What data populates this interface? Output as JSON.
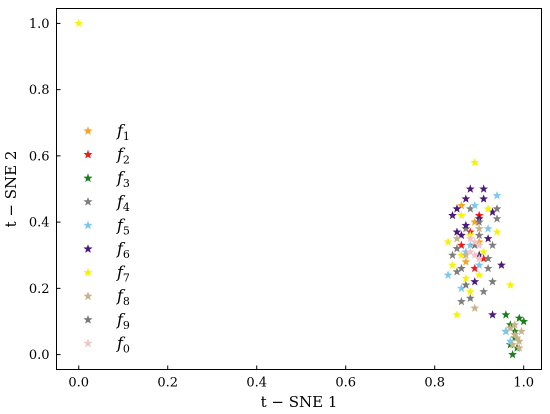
{
  "chart_data": {
    "type": "scatter",
    "title": "",
    "xlabel": "t − SNE 1",
    "ylabel": "t − SNE 2",
    "xlim": [
      -0.05,
      1.04
    ],
    "ylim": [
      -0.045,
      1.045
    ],
    "xticks": [
      {
        "v": 0.0,
        "label": "0.0"
      },
      {
        "v": 0.2,
        "label": "0.2"
      },
      {
        "v": 0.4,
        "label": "0.4"
      },
      {
        "v": 0.6,
        "label": "0.6"
      },
      {
        "v": 0.8,
        "label": "0.8"
      },
      {
        "v": 1.0,
        "label": "1.0"
      }
    ],
    "yticks": [
      {
        "v": 0.0,
        "label": "0.0"
      },
      {
        "v": 0.2,
        "label": "0.2"
      },
      {
        "v": 0.4,
        "label": "0.4"
      },
      {
        "v": 0.6,
        "label": "0.6"
      },
      {
        "v": 0.8,
        "label": "0.8"
      },
      {
        "v": 1.0,
        "label": "1.0"
      }
    ],
    "grid": false,
    "legend_position": "left",
    "marker": "star",
    "series": [
      {
        "name": "f",
        "sub": "1",
        "color": "#f5a623",
        "points": [
          [
            0.89,
            0.4
          ],
          [
            0.9,
            0.34
          ],
          [
            0.87,
            0.28
          ],
          [
            0.86,
            0.45
          ]
        ]
      },
      {
        "name": "f",
        "sub": "2",
        "color": "#ee1c1c",
        "points": [
          [
            0.88,
            0.37
          ],
          [
            0.91,
            0.29
          ],
          [
            0.86,
            0.33
          ],
          [
            0.89,
            0.26
          ],
          [
            0.9,
            0.42
          ]
        ]
      },
      {
        "name": "f",
        "sub": "3",
        "color": "#1a7f1a",
        "points": [
          [
            0.96,
            0.12
          ],
          [
            0.97,
            0.09
          ],
          [
            0.98,
            0.07
          ],
          [
            0.99,
            0.11
          ],
          [
            0.97,
            0.03
          ],
          [
            1.0,
            0.1
          ],
          [
            0.98,
            0.05
          ],
          [
            0.96,
            0.07
          ],
          [
            0.975,
            0.0
          ],
          [
            0.985,
            0.02
          ]
        ]
      },
      {
        "name": "f",
        "sub": "4",
        "color": "#808080",
        "points": [
          [
            0.87,
            0.38
          ],
          [
            0.92,
            0.26
          ],
          [
            0.85,
            0.25
          ],
          [
            0.88,
            0.44
          ],
          [
            0.93,
            0.33
          ],
          [
            0.84,
            0.3
          ],
          [
            0.91,
            0.19
          ],
          [
            0.86,
            0.16
          ],
          [
            0.94,
            0.41
          ],
          [
            0.9,
            0.36
          ]
        ]
      },
      {
        "name": "f",
        "sub": "5",
        "color": "#7ec8f0",
        "points": [
          [
            0.86,
            0.2
          ],
          [
            0.88,
            0.33
          ],
          [
            0.9,
            0.27
          ],
          [
            0.83,
            0.24
          ],
          [
            0.92,
            0.38
          ],
          [
            0.87,
            0.31
          ],
          [
            0.94,
            0.48
          ],
          [
            0.89,
            0.45
          ],
          [
            0.96,
            0.07
          ],
          [
            0.97,
            0.04
          ]
        ]
      },
      {
        "name": "f",
        "sub": "6",
        "color": "#4b1a7a",
        "points": [
          [
            0.88,
            0.5
          ],
          [
            0.91,
            0.47
          ],
          [
            0.85,
            0.44
          ],
          [
            0.93,
            0.43
          ],
          [
            0.87,
            0.39
          ],
          [
            0.9,
            0.3
          ],
          [
            0.92,
            0.35
          ],
          [
            0.86,
            0.36
          ],
          [
            0.95,
            0.27
          ],
          [
            0.89,
            0.22
          ],
          [
            0.84,
            0.42
          ],
          [
            0.91,
            0.5
          ],
          [
            0.93,
            0.12
          ],
          [
            0.87,
            0.47
          ],
          [
            0.85,
            0.37
          ],
          [
            0.9,
            0.41
          ]
        ]
      },
      {
        "name": "f",
        "sub": "7",
        "color": "#f7f20a",
        "points": [
          [
            0.0,
            1.0
          ],
          [
            0.89,
            0.58
          ],
          [
            0.83,
            0.34
          ],
          [
            0.87,
            0.23
          ],
          [
            0.91,
            0.31
          ],
          [
            0.86,
            0.42
          ],
          [
            0.84,
            0.27
          ],
          [
            0.92,
            0.44
          ],
          [
            0.88,
            0.19
          ],
          [
            0.85,
            0.12
          ],
          [
            0.94,
            0.37
          ],
          [
            0.97,
            0.21
          ],
          [
            0.9,
            0.24
          ],
          [
            0.88,
            0.36
          ],
          [
            0.86,
            0.3
          ]
        ]
      },
      {
        "name": "f",
        "sub": "8",
        "color": "#c7b48a",
        "points": [
          [
            0.98,
            0.06
          ],
          [
            0.99,
            0.04
          ],
          [
            0.97,
            0.08
          ],
          [
            0.985,
            0.05
          ],
          [
            0.995,
            0.07
          ],
          [
            0.975,
            0.03
          ],
          [
            0.99,
            0.02
          ],
          [
            0.98,
            0.09
          ],
          [
            0.87,
            0.3
          ],
          [
            0.9,
            0.38
          ],
          [
            0.85,
            0.35
          ],
          [
            0.89,
            0.14
          ]
        ]
      },
      {
        "name": "f",
        "sub": "9",
        "color": "#7a7a7a",
        "points": [
          [
            0.88,
            0.17
          ],
          [
            0.92,
            0.29
          ],
          [
            0.85,
            0.32
          ],
          [
            0.9,
            0.4
          ],
          [
            0.93,
            0.22
          ],
          [
            0.86,
            0.26
          ],
          [
            0.89,
            0.33
          ],
          [
            0.94,
            0.44
          ],
          [
            0.87,
            0.21
          ]
        ]
      },
      {
        "name": "f",
        "sub": "0",
        "color": "#f2c4c8",
        "points": [
          [
            0.89,
            0.34
          ],
          [
            0.88,
            0.31
          ],
          [
            0.9,
            0.33
          ],
          [
            0.89,
            0.3
          ],
          [
            0.88,
            0.35
          ],
          [
            0.9,
            0.29
          ]
        ]
      }
    ]
  }
}
